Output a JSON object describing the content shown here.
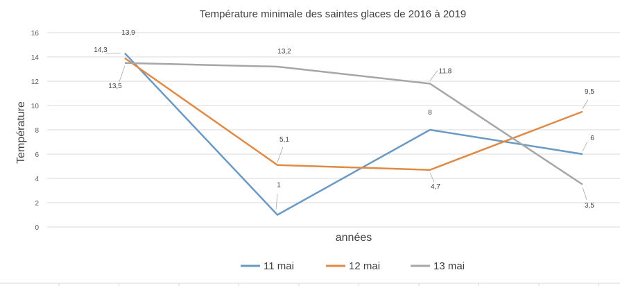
{
  "chart_data": {
    "type": "line",
    "title": "Température minimale des saintes glaces de 2016 à 2019",
    "xlabel": "années",
    "ylabel": "Température",
    "ylim": [
      0,
      16
    ],
    "yticks": [
      "0",
      "2",
      "4",
      "6",
      "8",
      "10",
      "12",
      "14",
      "16"
    ],
    "grid": true,
    "legend": "bottom",
    "categories": [
      "",
      "",
      "",
      ""
    ],
    "series": [
      {
        "name": "11 mai",
        "color": "#6a99c4",
        "values": [
          14.3,
          1,
          8,
          6
        ],
        "labels": [
          "14,3",
          "1",
          "8",
          "6"
        ]
      },
      {
        "name": "12 mai",
        "color": "#e08a45",
        "values": [
          13.9,
          5.1,
          4.7,
          9.5
        ],
        "labels": [
          "13,9",
          "5,1",
          "4,7",
          "9,5"
        ]
      },
      {
        "name": "13 mai",
        "color": "#a6a6a6",
        "values": [
          13.5,
          13.2,
          11.8,
          3.5
        ],
        "labels": [
          "13,5",
          "13,2",
          "11,8",
          "3,5"
        ]
      }
    ]
  }
}
